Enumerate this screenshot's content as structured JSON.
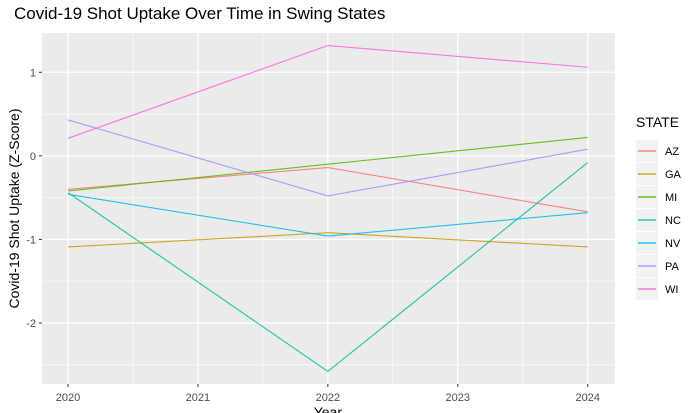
{
  "chart_data": {
    "type": "line",
    "title": "Covid-19 Shot Uptake Over Time in Swing States",
    "xlabel": "Year",
    "ylabel": "Covid-19 Shot Uptake (Z-Score)",
    "x": [
      2020,
      2022,
      2024
    ],
    "xticks": [
      "2020",
      "2021",
      "2022",
      "2023",
      "2024"
    ],
    "yticks": [
      "1",
      "0",
      "-1",
      "-2"
    ],
    "xlim": [
      2019.8,
      2024.21
    ],
    "ylim": [
      -2.73,
      1.47
    ],
    "grid": true,
    "legend": {
      "title": "STATE",
      "placement": "right"
    },
    "series": [
      {
        "name": "AZ",
        "color": "#F8766D",
        "values": [
          -0.4,
          -0.14,
          -0.67
        ]
      },
      {
        "name": "GA",
        "color": "#C49A00",
        "values": [
          -1.09,
          -0.92,
          -1.09
        ]
      },
      {
        "name": "MI",
        "color": "#53B400",
        "values": [
          -0.42,
          -0.1,
          0.22
        ]
      },
      {
        "name": "NC",
        "color": "#00C094",
        "values": [
          -0.44,
          -2.58,
          -0.08
        ]
      },
      {
        "name": "NV",
        "color": "#00B6EB",
        "values": [
          -0.46,
          -0.96,
          -0.68
        ]
      },
      {
        "name": "PA",
        "color": "#A58AFF",
        "values": [
          0.43,
          -0.48,
          0.08
        ]
      },
      {
        "name": "WI",
        "color": "#FB61D7",
        "values": [
          0.21,
          1.32,
          1.06
        ]
      }
    ]
  }
}
